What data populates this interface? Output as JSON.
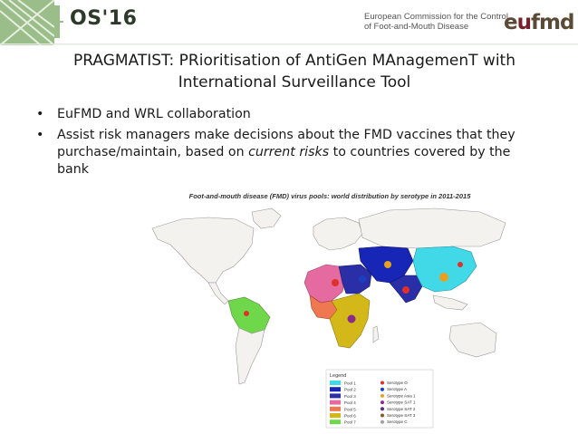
{
  "header": {
    "conference_logo": "OS'16",
    "commission_line1": "European Commission for the Control",
    "commission_line2": "of Foot-and-Mouth Disease",
    "org_logo_prefix": "e",
    "org_logo_o": "u",
    "org_logo_suffix": "fmd"
  },
  "slide": {
    "title_line1": "PRAGMATIST: PRioritisation of AntiGen MAnagemenT with",
    "title_line2": "International Surveillance Tool",
    "bullet_symbol": "•",
    "bullet1": "EuFMD and WRL collaboration",
    "bullet2_part1": "Assist risk managers make decisions about the FMD vaccines that they purchase/maintain, based on ",
    "bullet2_emph": "current risks",
    "bullet2_part2": " to countries covered by the bank"
  },
  "figure": {
    "title": "Foot-and-mouth disease (FMD) virus pools: world distribution by serotype in 2011-2015",
    "legend_title": "Legend",
    "pools": [
      "Pool 1",
      "Pool 2",
      "Pool 3",
      "Pool 4",
      "Pool 5",
      "Pool 6",
      "Pool 7"
    ],
    "serotypes": [
      "Serotype O",
      "Serotype A",
      "Serotype Asia 1",
      "Serotype SAT 1",
      "Serotype SAT 2",
      "Serotype SAT 3",
      "Serotype C"
    ],
    "pool_colors": [
      "#41d8e8",
      "#1826b8",
      "#2a2fa8",
      "#e56aa0",
      "#f07850",
      "#d4b81a",
      "#6fd84a"
    ],
    "serotype_colors": [
      "#e0302a",
      "#1a40c0",
      "#e8a020",
      "#8a2a8a",
      "#5a2a8a",
      "#8a5a2a",
      "#a0a0a0"
    ]
  }
}
